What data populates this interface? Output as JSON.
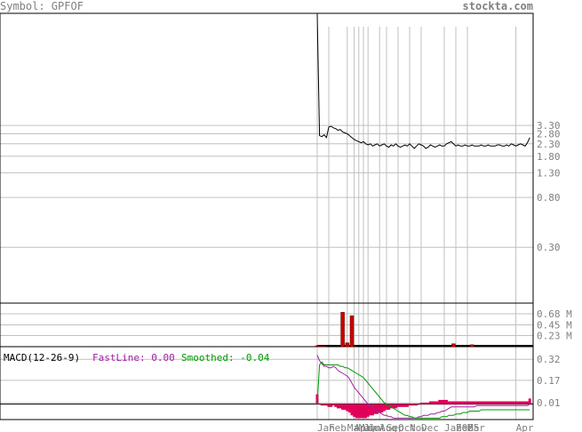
{
  "header": {
    "symbol_text": "Symbol: GPFOF",
    "site_text": "stockta.com"
  },
  "colors": {
    "price_line": "#000000",
    "grid": "#c0c0c0",
    "axis_text": "#808080",
    "volume_bar": "#cc0000",
    "macd_line": "#a020a0",
    "signal_line": "#009900",
    "histogram": "#e0005a",
    "header_text": "#808080"
  },
  "chart_data": [
    {
      "type": "line",
      "name": "price",
      "y_scale": "log",
      "ylim": [
        0.1,
        30
      ],
      "y_ticks": [
        {
          "v": 3.3,
          "label": "3.30"
        },
        {
          "v": 2.8,
          "label": "2.80"
        },
        {
          "v": 2.3,
          "label": "2.30"
        },
        {
          "v": 1.8,
          "label": "1.80"
        },
        {
          "v": 1.3,
          "label": "1.30"
        },
        {
          "v": 0.8,
          "label": "0.80"
        },
        {
          "v": 0.3,
          "label": "0.30"
        }
      ],
      "x_labels": [
        "Jan",
        "Feb",
        "Mar",
        "Apr",
        "May",
        "Jun",
        "Jul",
        "Aug",
        "Sep",
        "Oct",
        "Nov",
        "Dec",
        "Jan",
        "2025",
        "Feb",
        "Mar",
        "Apr"
      ],
      "x_label_pos": [
        0,
        5,
        13,
        16,
        18,
        20,
        22,
        27,
        30,
        35,
        40,
        45,
        55,
        60,
        60,
        65,
        86
      ],
      "close": [
        30,
        2.7,
        2.65,
        2.75,
        2.6,
        3.2,
        3.25,
        3.15,
        3.1,
        3.0,
        3.05,
        2.9,
        2.85,
        2.8,
        2.7,
        2.6,
        2.5,
        2.45,
        2.4,
        2.35,
        2.4,
        2.3,
        2.25,
        2.3,
        2.2,
        2.25,
        2.3,
        2.2,
        2.25,
        2.3,
        2.2,
        2.15,
        2.25,
        2.2,
        2.3,
        2.2,
        2.15,
        2.2,
        2.25,
        2.2,
        2.3,
        2.2,
        2.1,
        2.2,
        2.3,
        2.25,
        2.2,
        2.1,
        2.15,
        2.25,
        2.2,
        2.15,
        2.2,
        2.25,
        2.2,
        2.2,
        2.3,
        2.35,
        2.4,
        2.3,
        2.2,
        2.25,
        2.2,
        2.2,
        2.25,
        2.2,
        2.2,
        2.25,
        2.2,
        2.2,
        2.2,
        2.25,
        2.2,
        2.2,
        2.25,
        2.2,
        2.2,
        2.2,
        2.25,
        2.25,
        2.2,
        2.2,
        2.25,
        2.2,
        2.3,
        2.25,
        2.2,
        2.25,
        2.3,
        2.25,
        2.2,
        2.35,
        2.6
      ]
    },
    {
      "type": "bar",
      "name": "volume",
      "ylim": [
        0,
        0.9
      ],
      "y_ticks": [
        {
          "v": 0.68,
          "label": "0.68 M"
        },
        {
          "v": 0.45,
          "label": "0.45 M"
        },
        {
          "v": 0.23,
          "label": "0.23 M"
        }
      ],
      "volume": [
        0.02,
        0.01,
        0.01,
        0.01,
        0.0,
        0.0,
        0.0,
        0.0,
        0.0,
        0.0,
        0.0,
        0.71,
        0.01,
        0.08,
        0.0,
        0.64,
        0.01,
        0.0,
        0.0,
        0.0,
        0.0,
        0.0,
        0.0,
        0.0,
        0.0,
        0.0,
        0.0,
        0.0,
        0.0,
        0.0,
        0.0,
        0.0,
        0.0,
        0.0,
        0.0,
        0.0,
        0.0,
        0.0,
        0.0,
        0.0,
        0.0,
        0.0,
        0.0,
        0.0,
        0.0,
        0.0,
        0.0,
        0.0,
        0.0,
        0.0,
        0.0,
        0.0,
        0.0,
        0.0,
        0.0,
        0.0,
        0.0,
        0.0,
        0.0,
        0.06,
        0.0,
        0.0,
        0.0,
        0.0,
        0.0,
        0.0,
        0.0,
        0.04,
        0.0,
        0.0,
        0.0,
        0.0,
        0.0,
        0.0,
        0.0,
        0.0,
        0.0,
        0.0,
        0.0,
        0.0,
        0.0,
        0.0,
        0.0,
        0.0,
        0.0,
        0.0,
        0.0,
        0.0,
        0.0,
        0.0,
        0.0,
        0.0,
        0.0
      ]
    },
    {
      "type": "line",
      "name": "MACD",
      "title": "MACD(12-26-9)",
      "fast_label": "FastLine: 0.00",
      "smooth_label": "Smoothed: -0.04",
      "ylim": [
        -0.11,
        0.41
      ],
      "zero": 0.0,
      "y_ticks": [
        {
          "v": 0.32,
          "label": "0.32"
        },
        {
          "v": 0.17,
          "label": "0.17"
        },
        {
          "v": 0.01,
          "label": "0.01"
        }
      ],
      "macd": [
        0.35,
        0.31,
        0.29,
        0.27,
        0.27,
        0.26,
        0.26,
        0.27,
        0.26,
        0.24,
        0.23,
        0.22,
        0.21,
        0.2,
        0.18,
        0.15,
        0.12,
        0.1,
        0.08,
        0.06,
        0.04,
        0.02,
        0.0,
        -0.01,
        -0.02,
        -0.04,
        -0.05,
        -0.06,
        -0.07,
        -0.08,
        -0.08,
        -0.09,
        -0.09,
        -0.1,
        -0.1,
        -0.1,
        -0.1,
        -0.1,
        -0.1,
        -0.1,
        -0.1,
        -0.1,
        -0.1,
        -0.1,
        -0.09,
        -0.09,
        -0.08,
        -0.08,
        -0.08,
        -0.07,
        -0.07,
        -0.07,
        -0.06,
        -0.06,
        -0.05,
        -0.05,
        -0.04,
        -0.03,
        -0.02,
        -0.02,
        -0.02,
        -0.02,
        -0.02,
        -0.02,
        -0.02,
        -0.02,
        -0.02,
        -0.02,
        -0.02,
        -0.01,
        -0.01,
        -0.01,
        -0.01,
        -0.01,
        -0.01,
        -0.01,
        -0.01,
        -0.01,
        -0.01,
        -0.01,
        -0.01,
        -0.01,
        -0.01,
        -0.01,
        -0.01,
        -0.01,
        -0.01,
        -0.01,
        -0.01,
        -0.01,
        -0.01,
        -0.01,
        0.0
      ],
      "signal": [
        0.0,
        0.28,
        0.3,
        0.28,
        0.28,
        0.28,
        0.28,
        0.28,
        0.28,
        0.28,
        0.27,
        0.27,
        0.26,
        0.26,
        0.25,
        0.24,
        0.23,
        0.22,
        0.21,
        0.2,
        0.19,
        0.17,
        0.15,
        0.13,
        0.11,
        0.09,
        0.07,
        0.05,
        0.03,
        0.01,
        0.0,
        -0.01,
        -0.02,
        -0.03,
        -0.04,
        -0.05,
        -0.06,
        -0.07,
        -0.08,
        -0.08,
        -0.09,
        -0.09,
        -0.1,
        -0.1,
        -0.1,
        -0.1,
        -0.1,
        -0.1,
        -0.1,
        -0.1,
        -0.1,
        -0.1,
        -0.1,
        -0.1,
        -0.09,
        -0.09,
        -0.09,
        -0.08,
        -0.08,
        -0.08,
        -0.07,
        -0.07,
        -0.07,
        -0.06,
        -0.06,
        -0.06,
        -0.05,
        -0.05,
        -0.05,
        -0.05,
        -0.05,
        -0.04,
        -0.04,
        -0.04,
        -0.04,
        -0.04,
        -0.04,
        -0.04,
        -0.04,
        -0.04,
        -0.04,
        -0.04,
        -0.04,
        -0.04,
        -0.04,
        -0.04,
        -0.04,
        -0.04,
        -0.04,
        -0.04,
        -0.04,
        -0.04,
        -0.04
      ],
      "histogram": [
        0.07,
        0.0,
        -0.01,
        -0.01,
        -0.01,
        -0.02,
        -0.02,
        -0.01,
        -0.02,
        -0.03,
        -0.03,
        -0.04,
        -0.04,
        -0.05,
        -0.06,
        -0.08,
        -0.09,
        -0.1,
        -0.1,
        -0.1,
        -0.1,
        -0.1,
        -0.09,
        -0.08,
        -0.08,
        -0.07,
        -0.07,
        -0.06,
        -0.06,
        -0.05,
        -0.04,
        -0.04,
        -0.03,
        -0.03,
        -0.03,
        -0.02,
        -0.02,
        -0.02,
        -0.02,
        -0.02,
        -0.01,
        -0.01,
        -0.01,
        -0.01,
        0.0,
        0.01,
        0.01,
        0.01,
        0.01,
        0.02,
        0.02,
        0.02,
        0.02,
        0.03,
        0.03,
        0.03,
        0.03,
        0.02,
        0.02,
        0.02,
        0.02,
        0.02,
        0.02,
        0.02,
        0.02,
        0.02,
        0.02,
        0.02,
        0.02,
        0.02,
        0.02,
        0.02,
        0.02,
        0.02,
        0.02,
        0.02,
        0.02,
        0.02,
        0.02,
        0.02,
        0.02,
        0.02,
        0.02,
        0.02,
        0.02,
        0.02,
        0.02,
        0.02,
        0.02,
        0.02,
        0.02,
        0.02,
        0.04
      ]
    }
  ]
}
